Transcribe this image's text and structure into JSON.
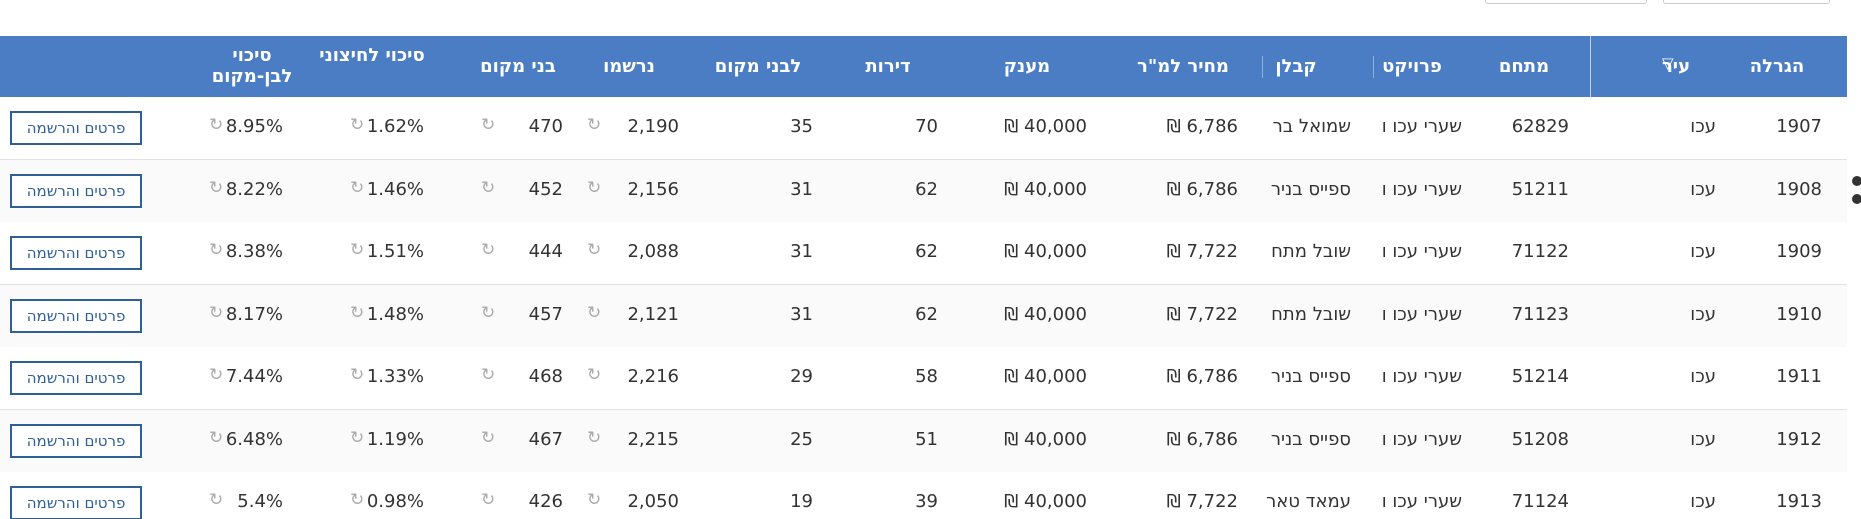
{
  "table": {
    "headers": [
      "הגרלה",
      "עיר",
      "מתחם",
      "פרויקט",
      "קבלן",
      "מחיר למ\"ר",
      "מענק",
      "דירות",
      "לבני מקום",
      "נרשמו",
      "בני מקום",
      "סיכוי לחיצוני",
      "סיכוי לבן-מקום"
    ],
    "button_label": "פרטים והרשמה",
    "rows": [
      [
        "1907",
        "עכו",
        "62829",
        "שערי עכו ו",
        "שמואל בר",
        "6,786 ₪",
        "40,000 ₪",
        "70",
        "35",
        "2,190",
        "470",
        "1.62%",
        "8.95%"
      ],
      [
        "1908",
        "עכו",
        "51211",
        "שערי עכו ו",
        "ספייס בניר",
        "6,786 ₪",
        "40,000 ₪",
        "62",
        "31",
        "2,156",
        "452",
        "1.46%",
        "8.22%"
      ],
      [
        "1909",
        "עכו",
        "71122",
        "שערי עכו ו",
        "שובל מתח",
        "7,722 ₪",
        "40,000 ₪",
        "62",
        "31",
        "2,088",
        "444",
        "1.51%",
        "8.38%"
      ],
      [
        "1910",
        "עכו",
        "71123",
        "שערי עכו ו",
        "שובל מתח",
        "7,722 ₪",
        "40,000 ₪",
        "62",
        "31",
        "2,121",
        "457",
        "1.48%",
        "8.17%"
      ],
      [
        "1911",
        "עכו",
        "51214",
        "שערי עכו ו",
        "ספייס בניר",
        "6,786 ₪",
        "40,000 ₪",
        "58",
        "29",
        "2,216",
        "468",
        "1.33%",
        "7.44%"
      ],
      [
        "1912",
        "עכו",
        "51208",
        "שערי עכו ו",
        "ספייס בניר",
        "6,786 ₪",
        "40,000 ₪",
        "51",
        "25",
        "2,215",
        "467",
        "1.19%",
        "6.48%"
      ],
      [
        "1913",
        "עכו",
        "71124",
        "שערי עכו ו",
        "עמאד טאר",
        "7,722 ₪",
        "40,000 ₪",
        "39",
        "19",
        "2,050",
        "426",
        "0.98%",
        "5.4%"
      ]
    ]
  }
}
